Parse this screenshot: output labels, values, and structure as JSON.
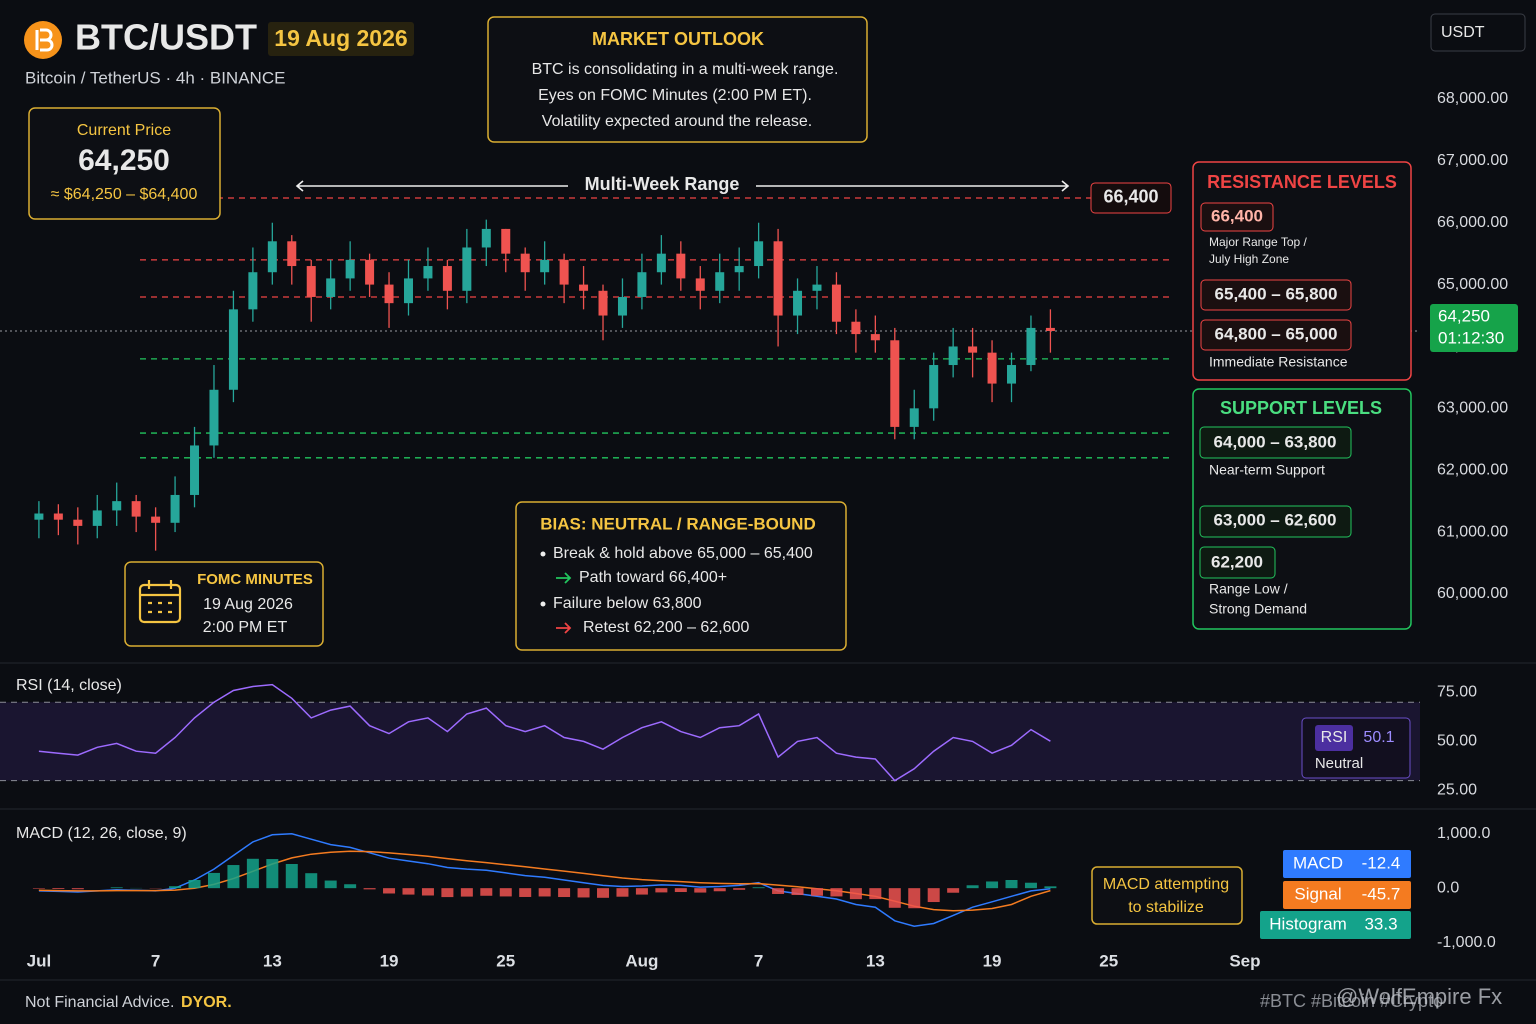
{
  "header": {
    "symbol": "BTC/USDT",
    "date": "19 Aug 2026",
    "subtitle": "Bitcoin / TetherUS · 4h · BINANCE",
    "currency": "USDT"
  },
  "current_price": {
    "title": "Current Price",
    "value": "64,250",
    "range": "≈ $64,250 – $64,400"
  },
  "outlook": {
    "title": "MARKET OUTLOOK",
    "lines": [
      "BTC is consolidating in a multi-week range.",
      "Eyes on FOMC Minutes (2:00 PM ET).",
      "Volatility expected around the release."
    ]
  },
  "range_label": "Multi-Week Range",
  "bias": {
    "title": "BIAS: NEUTRAL / RANGE-BOUND",
    "items": [
      "Break & hold above 65,000 – 65,400",
      "Path toward 66,400+",
      "Failure below 63,800",
      "Retest 62,200 – 62,600"
    ]
  },
  "fomc": {
    "title": "FOMC MINUTES",
    "date": "19 Aug 2026",
    "time": "2:00 PM ET"
  },
  "resistance": {
    "title": "RESISTANCE LEVELS",
    "levels": [
      {
        "label": "66,400",
        "note": [
          "Major Range Top /",
          "July High Zone"
        ]
      },
      {
        "label": "65,400 – 65,800"
      },
      {
        "label": "64,800 – 65,000",
        "note": [
          "Immediate Resistance"
        ]
      }
    ]
  },
  "support": {
    "title": "SUPPORT LEVELS",
    "levels": [
      {
        "label": "64,000 – 63,800",
        "note": [
          "Near-term Support"
        ]
      },
      {
        "label": "63,000 – 62,600"
      },
      {
        "label": "62,200",
        "note": [
          "Range Low /",
          "Strong Demand"
        ]
      }
    ]
  },
  "footer": {
    "disclaimer": "Not Financial Advice.",
    "dyor": "DYOR.",
    "tags": "#BTC #Bitcoin #Crypto",
    "watermark": "@WolfEmpire Fx"
  },
  "chart_data": [
    {
      "type": "candlestick",
      "up_color": "#26a69a",
      "down_color": "#ef5350",
      "open": [
        61200,
        61300,
        61200,
        61100,
        61350,
        61500,
        61250,
        61150,
        61600,
        62400,
        63300,
        64600,
        65200,
        65700,
        65300,
        64800,
        65100,
        65400,
        65000,
        64700,
        65100,
        65300,
        64900,
        65600,
        65900,
        65500,
        65200,
        65400,
        65000,
        64900,
        64500,
        64800,
        65200,
        65500,
        65100,
        64900,
        65200,
        65300,
        65700,
        64500,
        64900,
        65000,
        64400,
        64200,
        64100,
        62700,
        63000,
        63700,
        64000,
        63900,
        63400,
        63700,
        64300
      ],
      "high": [
        61500,
        61450,
        61400,
        61600,
        61800,
        61600,
        61400,
        61900,
        62700,
        63700,
        64900,
        65600,
        66000,
        65800,
        65400,
        65400,
        65700,
        65500,
        65200,
        65400,
        65600,
        65400,
        65900,
        66050,
        65900,
        65600,
        65700,
        65500,
        65300,
        65000,
        65100,
        65500,
        65800,
        65700,
        65300,
        65500,
        65600,
        66000,
        65900,
        65100,
        65300,
        65200,
        64600,
        64500,
        64300,
        63300,
        63900,
        64300,
        64300,
        64100,
        63900,
        64500,
        64600
      ],
      "low": [
        60900,
        60950,
        60800,
        60900,
        61100,
        61000,
        60700,
        61000,
        61400,
        62200,
        63100,
        64400,
        65000,
        65000,
        64400,
        64600,
        64900,
        64800,
        64300,
        64500,
        64900,
        64600,
        64700,
        65300,
        65200,
        64900,
        65000,
        64700,
        64600,
        64100,
        64300,
        64600,
        65000,
        64900,
        64600,
        64700,
        64900,
        65100,
        64000,
        64200,
        64600,
        64200,
        63900,
        63900,
        62500,
        62500,
        62800,
        63500,
        63500,
        63100,
        63100,
        63600,
        63900
      ],
      "close": [
        61300,
        61200,
        61100,
        61350,
        61500,
        61250,
        61150,
        61600,
        62400,
        63300,
        64600,
        65200,
        65700,
        65300,
        64800,
        65100,
        65400,
        65000,
        64700,
        65100,
        65300,
        64900,
        65600,
        65900,
        65500,
        65200,
        65400,
        65000,
        64900,
        64500,
        64800,
        65200,
        65500,
        65100,
        64900,
        65200,
        65300,
        65700,
        64500,
        64900,
        65000,
        64400,
        64200,
        64100,
        62700,
        63000,
        63700,
        64000,
        63900,
        63400,
        63700,
        64300,
        64250
      ],
      "xlim": [
        -2,
        71
      ],
      "xticks": [
        {
          "value": 0,
          "label": "Jul"
        },
        {
          "value": 6,
          "label": "7"
        },
        {
          "value": 12,
          "label": "13"
        },
        {
          "value": 18,
          "label": "19"
        },
        {
          "value": 24,
          "label": "25"
        },
        {
          "value": 31,
          "label": "Aug"
        },
        {
          "value": 37,
          "label": "7"
        },
        {
          "value": 43,
          "label": "13"
        },
        {
          "value": 49,
          "label": "19"
        },
        {
          "value": 55,
          "label": "25"
        },
        {
          "value": 62,
          "label": "Sep"
        }
      ],
      "ylim": [
        58900,
        69600
      ],
      "yticks": [
        {
          "value": 60000,
          "label": "60,000.00"
        },
        {
          "value": 61000,
          "label": "61,000.00"
        },
        {
          "value": 62000,
          "label": "62,000.00"
        },
        {
          "value": 63000,
          "label": "63,000.00"
        },
        {
          "value": 64000,
          "label": "64,000.00"
        },
        {
          "value": 65000,
          "label": "65,000.00"
        },
        {
          "value": 66000,
          "label": "66,000.00"
        },
        {
          "value": 67000,
          "label": "67,000.00"
        },
        {
          "value": 68000,
          "label": "68,000.00"
        }
      ],
      "levels": [
        {
          "value": 66400,
          "label": "66,400",
          "color": "#ef4444"
        },
        {
          "value": 65400,
          "color": "#ef4444"
        },
        {
          "value": 64800,
          "color": "#ef4444"
        },
        {
          "value": 63800,
          "color": "#22c55e"
        },
        {
          "value": 62600,
          "color": "#22c55e"
        },
        {
          "value": 62200,
          "color": "#22c55e"
        }
      ],
      "last_price": {
        "value": 64250,
        "label": "64,250",
        "countdown": "01:12:30",
        "color": "#16a34a"
      }
    },
    {
      "type": "line",
      "title": "RSI (14, close)",
      "xlim": [
        -2,
        71
      ],
      "ylim": [
        16,
        89
      ],
      "yticks": [
        {
          "value": 25,
          "label": "25.00"
        },
        {
          "value": 50,
          "label": "50.00"
        },
        {
          "value": 75,
          "label": "75.00"
        }
      ],
      "band": [
        30,
        70
      ],
      "status": "Neutral",
      "series": [
        {
          "name": "RSI",
          "color": "#9d6bff",
          "values": [
            45,
            44,
            43,
            47,
            49,
            45,
            44,
            52,
            62,
            70,
            76,
            78,
            79,
            72,
            62,
            66,
            68,
            58,
            54,
            60,
            62,
            55,
            64,
            67,
            58,
            55,
            58,
            52,
            50,
            46,
            52,
            57,
            60,
            55,
            52,
            57,
            58,
            64,
            42,
            50,
            52,
            44,
            42,
            41,
            30,
            36,
            45,
            52,
            50,
            44,
            48,
            56,
            50.1
          ]
        }
      ]
    },
    {
      "type": "macd",
      "title": "MACD (12, 26, close, 9)",
      "xlim": [
        -2,
        71
      ],
      "ylim": [
        -1100,
        1400
      ],
      "yticks": [
        {
          "value": -1000,
          "label": "-1,000.0"
        },
        {
          "value": 0,
          "label": "0.0"
        },
        {
          "value": 1000,
          "label": "1,000.0"
        }
      ],
      "annotation": [
        "MACD attempting",
        "to stabilize"
      ],
      "series": [
        {
          "name": "MACD",
          "color": "#2f7bff",
          "values": [
            -50,
            -60,
            -70,
            -50,
            -30,
            -40,
            -50,
            0,
            150,
            350,
            600,
            850,
            980,
            1000,
            900,
            800,
            750,
            650,
            550,
            500,
            450,
            380,
            350,
            330,
            280,
            230,
            200,
            150,
            100,
            50,
            30,
            40,
            60,
            50,
            20,
            30,
            50,
            100,
            -50,
            -100,
            -150,
            -200,
            -300,
            -350,
            -600,
            -700,
            -650,
            -500,
            -350,
            -250,
            -150,
            -50,
            -12.4
          ]
        },
        {
          "name": "Signal",
          "color": "#f47b20",
          "values": [
            -40,
            -45,
            -50,
            -50,
            -45,
            -44,
            -45,
            -36,
            0,
            70,
            175,
            310,
            445,
            556,
            625,
            660,
            678,
            672,
            648,
            618,
            585,
            544,
            505,
            470,
            432,
            392,
            353,
            313,
            271,
            227,
            187,
            158,
            138,
            121,
            101,
            87,
            80,
            84,
            57,
            26,
            -10,
            -48,
            -98,
            -149,
            -239,
            -331,
            -395,
            -416,
            -403,
            -373,
            -300,
            -150,
            -45.7
          ]
        },
        {
          "name": "Histogram",
          "color": "#14a38b",
          "negative_color": "#ef5350",
          "values": [
            -10,
            -15,
            -20,
            0,
            15,
            4,
            -5,
            36,
            150,
            280,
            425,
            540,
            535,
            444,
            275,
            140,
            72,
            -22,
            -98,
            -118,
            -135,
            -164,
            -155,
            -140,
            -152,
            -162,
            -153,
            -163,
            -171,
            -177,
            -157,
            -118,
            -78,
            -71,
            -81,
            -57,
            -30,
            16,
            -107,
            -126,
            -140,
            -152,
            -202,
            -201,
            -361,
            -369,
            -255,
            -84,
            53,
            123,
            150,
            100,
            33.3
          ]
        }
      ]
    }
  ]
}
